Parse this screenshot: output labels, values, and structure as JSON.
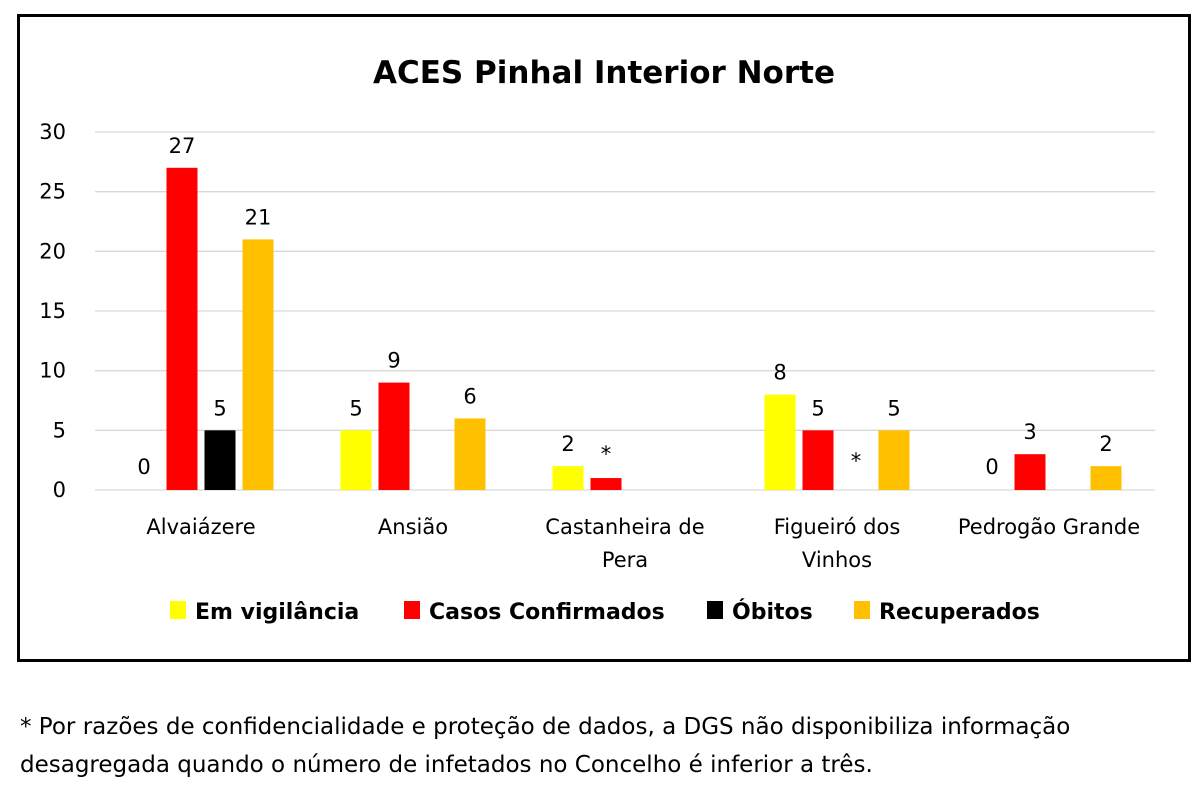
{
  "chart_data": {
    "type": "bar",
    "title": "ACES Pinhal Interior Norte",
    "xlabel": "",
    "ylabel": "",
    "ylim": [
      0,
      30
    ],
    "yticks": [
      "0",
      "5",
      "10",
      "15",
      "20",
      "25",
      "30"
    ],
    "grid": true,
    "legend_position": "bottom",
    "categories": [
      [
        "Alvaiázere"
      ],
      [
        "Ansião"
      ],
      [
        "Castanheira de",
        "Pera"
      ],
      [
        "Figueiró dos",
        "Vinhos"
      ],
      [
        "Pedrogão Grande"
      ]
    ],
    "series": [
      {
        "name": "Em vigilância",
        "color": "#FFFF00",
        "values": [
          0,
          5,
          2,
          8,
          0
        ],
        "labels": [
          "0",
          "5",
          "2",
          "8",
          "0"
        ]
      },
      {
        "name": "Casos Confirmados",
        "color": "#FF0000",
        "values": [
          27,
          9,
          1,
          5,
          3
        ],
        "labels": [
          "27",
          "9",
          "*",
          "5",
          "3"
        ]
      },
      {
        "name": "Óbitos",
        "color": "#000000",
        "values": [
          5,
          null,
          null,
          null,
          null
        ],
        "labels": [
          "5",
          "",
          "",
          "*",
          ""
        ]
      },
      {
        "name": "Recuperados",
        "color": "#FFC000",
        "values": [
          21,
          6,
          null,
          5,
          2
        ],
        "labels": [
          "21",
          "6",
          "",
          "5",
          "2"
        ]
      }
    ]
  },
  "footnote": {
    "line1": "* Por razões de confidencialidade e proteção de dados, a DGS não disponibiliza informação",
    "line2": "desagregada quando o número de infetados no Concelho é inferior a três."
  }
}
